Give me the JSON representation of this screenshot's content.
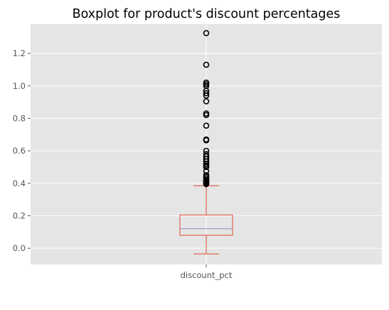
{
  "chart_data": {
    "type": "box",
    "title": "Boxplot for product's discount percentages",
    "xlabel": "",
    "ylabel": "",
    "categories": [
      "discount_pct"
    ],
    "ylim": [
      -0.1,
      1.38
    ],
    "yticks": [
      0.0,
      0.2,
      0.4,
      0.6,
      0.8,
      1.0,
      1.2
    ],
    "ytick_labels": [
      "0.0",
      "0.2",
      "0.4",
      "0.6",
      "0.8",
      "1.0",
      "1.2"
    ],
    "grid": true,
    "box": {
      "whisker_low": -0.035,
      "q1": 0.08,
      "median": 0.12,
      "q3": 0.205,
      "whisker_high": 0.385
    },
    "outliers": [
      0.395,
      0.4,
      0.405,
      0.41,
      0.415,
      0.42,
      0.43,
      0.44,
      0.45,
      0.475,
      0.5,
      0.51,
      0.52,
      0.535,
      0.55,
      0.565,
      0.58,
      0.6,
      0.665,
      0.67,
      0.755,
      0.82,
      0.83,
      0.905,
      0.94,
      0.955,
      0.97,
      1.0,
      1.01,
      1.02,
      1.13,
      1.325
    ],
    "colors": {
      "background": "#e5e5e5",
      "grid": "#ffffff",
      "box": "#e24a33",
      "median": "#8e8ec8",
      "outlier": "#000000"
    }
  }
}
